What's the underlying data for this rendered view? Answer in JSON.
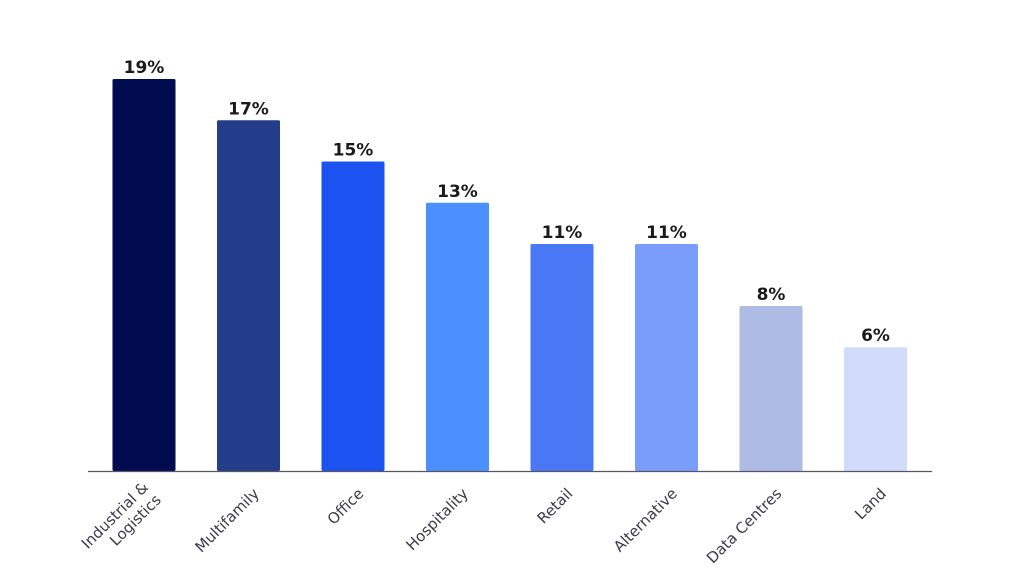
{
  "chart_data": {
    "type": "bar",
    "title": "",
    "xlabel": "",
    "ylabel": "",
    "categories": [
      [
        "Industrial &",
        "Logistics"
      ],
      [
        "Multifamily"
      ],
      [
        "Office"
      ],
      [
        "Hospitality"
      ],
      [
        "Retail"
      ],
      [
        "Alternative"
      ],
      [
        "Data Centres"
      ],
      [
        "Land"
      ]
    ],
    "values": [
      19,
      17,
      15,
      13,
      11,
      11,
      8,
      6
    ],
    "value_labels": [
      "19%",
      "17%",
      "15%",
      "13%",
      "11%",
      "11%",
      "8%",
      "6%"
    ],
    "colors": [
      "#020a50",
      "#233d8a",
      "#1c53f0",
      "#4a90ff",
      "#4a78f5",
      "#7a9cfa",
      "#aebbe4",
      "#d1dcfc"
    ],
    "ylim": [
      0,
      19
    ],
    "grid": false,
    "legend": "none",
    "axis_color": "#555566"
  }
}
